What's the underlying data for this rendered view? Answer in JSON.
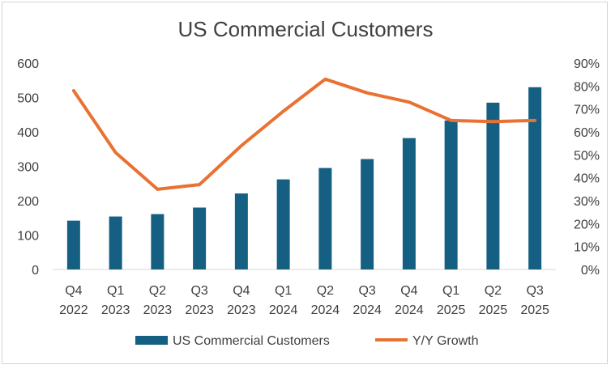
{
  "chart_data": {
    "type": "bar",
    "title": "US Commercial Customers",
    "xlabel": "",
    "ylabel": "",
    "categories": [
      [
        "Q4",
        "2022"
      ],
      [
        "Q1",
        "2023"
      ],
      [
        "Q2",
        "2023"
      ],
      [
        "Q3",
        "2023"
      ],
      [
        "Q4",
        "2023"
      ],
      [
        "Q1",
        "2024"
      ],
      [
        "Q2",
        "2024"
      ],
      [
        "Q3",
        "2024"
      ],
      [
        "Q4",
        "2024"
      ],
      [
        "Q1",
        "2025"
      ],
      [
        "Q2",
        "2025"
      ],
      [
        "Q3",
        "2025"
      ]
    ],
    "series": [
      {
        "name": "US Commercial Customers",
        "type": "bar",
        "axis": "left",
        "color": "#156082",
        "values": [
          142,
          154,
          161,
          180,
          221,
          262,
          295,
          321,
          382,
          433,
          485,
          530
        ]
      },
      {
        "name": "Y/Y Growth",
        "type": "line",
        "axis": "right",
        "color": "#E97132",
        "values": [
          0.78,
          0.51,
          0.35,
          0.37,
          0.54,
          0.69,
          0.83,
          0.77,
          0.73,
          0.65,
          0.645,
          0.65
        ]
      }
    ],
    "ylim": [
      0,
      600
    ],
    "y_ticks": [
      "0",
      "100",
      "200",
      "300",
      "400",
      "500",
      "600"
    ],
    "y2lim": [
      0,
      0.9
    ],
    "y2_ticks": [
      "0%",
      "10%",
      "20%",
      "30%",
      "40%",
      "50%",
      "60%",
      "70%",
      "80%",
      "90%"
    ],
    "grid": false,
    "legend": "bottom"
  }
}
